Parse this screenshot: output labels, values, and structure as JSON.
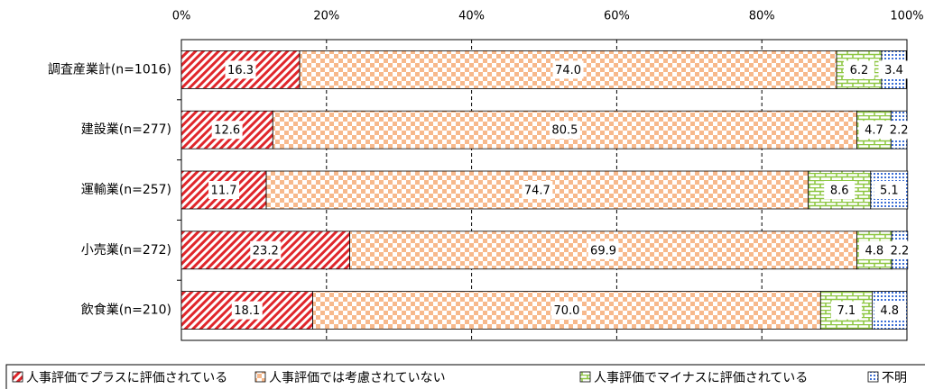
{
  "chart_data": {
    "type": "stacked-bar-horizontal",
    "categories": [
      "調査産業計(n=1016)",
      "建設業(n=277)",
      "運輸業(n=257)",
      "小売業(n=272)",
      "飲食業(n=210)"
    ],
    "series": [
      {
        "name": "人事評価でプラスに評価されている",
        "color": "#e0262b",
        "values": [
          16.3,
          12.6,
          11.7,
          23.2,
          18.1
        ]
      },
      {
        "name": "人事評価では考慮されていない",
        "color": "#f7b98c",
        "values": [
          74.0,
          80.5,
          74.7,
          69.9,
          70.0
        ],
        "value_labels": [
          "74.0",
          "80.5",
          "74.7",
          "69.9",
          "70.0"
        ]
      },
      {
        "name": "人事評価でマイナスに評価されている",
        "color": "#8cc63f",
        "values": [
          6.2,
          4.7,
          8.6,
          4.8,
          7.1
        ]
      },
      {
        "name": "不明",
        "color": "#3d6fd6",
        "values": [
          3.4,
          2.2,
          5.1,
          2.2,
          4.8
        ]
      }
    ],
    "xlim": [
      0,
      100
    ],
    "xticks": [
      {
        "value": 0,
        "label": "0%"
      },
      {
        "value": 20,
        "label": "20%"
      },
      {
        "value": 40,
        "label": "40%"
      },
      {
        "value": 60,
        "label": "60%"
      },
      {
        "value": 80,
        "label": "80%"
      },
      {
        "value": 100,
        "label": "100%"
      }
    ],
    "grid": true,
    "legend": "bottom"
  }
}
